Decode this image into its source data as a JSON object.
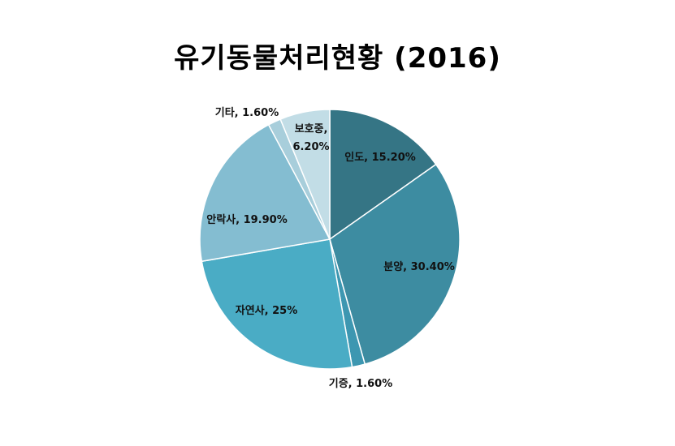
{
  "chart_data": {
    "type": "pie",
    "title": "유기동물처리현황 (2016)",
    "start_angle_deg": 0,
    "direction": "clockwise",
    "slices": [
      {
        "label": "인도",
        "display": "인도, 15.20%",
        "value": 15.2,
        "color": "#357585"
      },
      {
        "label": "분양",
        "display": "분양, 30.40%",
        "value": 30.4,
        "color": "#3d8ca1"
      },
      {
        "label": "기증",
        "display": "기증, 1.60%",
        "value": 1.6,
        "color": "#3d97b1"
      },
      {
        "label": "자연사",
        "display": "자연사, 25%",
        "value": 25.0,
        "color": "#4aacc5"
      },
      {
        "label": "안락사",
        "display": "안락사, 19.90%",
        "value": 19.9,
        "color": "#84bdd1"
      },
      {
        "label": "기타",
        "display": "기타, 1.60%",
        "value": 1.6,
        "color": "#a8cedb"
      },
      {
        "label": "보호중",
        "display": "보호중, 6.20%",
        "value": 6.2,
        "color": "#c2dde6",
        "display_lines": [
          "보호중,",
          "6.20%"
        ]
      }
    ]
  }
}
